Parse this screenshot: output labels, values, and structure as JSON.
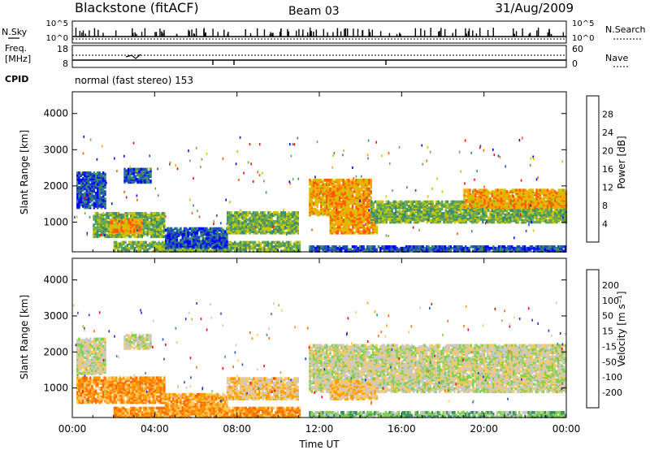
{
  "header": {
    "station": "Blackstone (fitACF)",
    "beam": "Beam 03",
    "date": "31/Aug/2009"
  },
  "params_panel": {
    "left_top_label": "N.Sky",
    "left_top_ticks": [
      "10^5",
      "10^0"
    ],
    "right_top_label": "N.Search",
    "right_top_ticks": [
      "10^5",
      "10^0"
    ],
    "left_bottom_label_1": "Freq.",
    "left_bottom_label_2": "[MHz]",
    "left_bottom_ticks": [
      "18",
      "8"
    ],
    "right_bottom_label": "Nave",
    "right_bottom_ticks": [
      "60",
      "0"
    ],
    "cpid_label": "CPID",
    "cpid_value": "normal (fast stereo) 153"
  },
  "colors": {
    "power_scale": [
      "#0000ff",
      "#1f4fb4",
      "#3a8c6e",
      "#6aa84f",
      "#c8c800",
      "#ffa500",
      "#ff5a00",
      "#ff0000"
    ],
    "velocity_scale": [
      "#ff0000",
      "#ff6a00",
      "#ff9a00",
      "#ffc864",
      "#c8c8c8",
      "#7fd14a",
      "#3a8c6e",
      "#1f4fb4",
      "#1a2fd0"
    ]
  },
  "chart_data": [
    {
      "type": "heatmap",
      "title": "",
      "quantity": "Power",
      "xlabel": "",
      "ylabel": "Slant Range [km]",
      "x_range_hours": [
        0,
        24
      ],
      "ylim": [
        180,
        4600
      ],
      "yticks": [
        "1000",
        "2000",
        "3000",
        "4000"
      ],
      "colorbar_label": "Power [dB]",
      "colorbar_ticks": [
        "4",
        "8",
        "12",
        "16",
        "20",
        "24",
        "28"
      ],
      "bands": [
        {
          "t0": 1.0,
          "t1": 4.5,
          "r0": 600,
          "r1": 1250,
          "level": "mid"
        },
        {
          "t0": 1.8,
          "t1": 3.4,
          "r0": 700,
          "r1": 1100,
          "level": "high"
        },
        {
          "t0": 0.2,
          "t1": 1.6,
          "r0": 1400,
          "r1": 2400,
          "level": "low"
        },
        {
          "t0": 2.5,
          "t1": 3.8,
          "r0": 2100,
          "r1": 2500,
          "level": "low"
        },
        {
          "t0": 2.0,
          "t1": 11.0,
          "r0": 200,
          "r1": 450,
          "level": "mid"
        },
        {
          "t0": 4.5,
          "t1": 7.5,
          "r0": 300,
          "r1": 850,
          "level": "low"
        },
        {
          "t0": 7.5,
          "t1": 11.0,
          "r0": 700,
          "r1": 1300,
          "level": "mid"
        },
        {
          "t0": 11.5,
          "t1": 14.5,
          "r0": 1200,
          "r1": 2200,
          "level": "high"
        },
        {
          "t0": 12.5,
          "t1": 14.8,
          "r0": 700,
          "r1": 1300,
          "level": "high"
        },
        {
          "t0": 14.5,
          "t1": 24.0,
          "r0": 1000,
          "r1": 1600,
          "level": "mid"
        },
        {
          "t0": 19.0,
          "t1": 24.0,
          "r0": 1400,
          "r1": 1900,
          "level": "high"
        },
        {
          "t0": 11.5,
          "t1": 24.0,
          "r0": 200,
          "r1": 350,
          "level": "low"
        }
      ]
    },
    {
      "type": "heatmap",
      "title": "",
      "quantity": "Velocity",
      "xlabel": "Time UT",
      "ylabel": "Slant Range [km]",
      "x_range_hours": [
        0,
        24
      ],
      "ylim": [
        180,
        4600
      ],
      "xticks": [
        "00:00",
        "04:00",
        "08:00",
        "12:00",
        "16:00",
        "20:00",
        "00:00"
      ],
      "yticks": [
        "1000",
        "2000",
        "3000",
        "4000"
      ],
      "colorbar_label": "Velocity [m s⁻¹]",
      "colorbar_ticks": [
        "200",
        "100",
        "50",
        "15",
        "-15",
        "-50",
        "-100",
        "-200"
      ],
      "bands": [
        {
          "t0": 0.2,
          "t1": 4.5,
          "r0": 600,
          "r1": 1300,
          "level": "neg-mid"
        },
        {
          "t0": 0.2,
          "t1": 1.6,
          "r0": 1400,
          "r1": 2400,
          "level": "zero"
        },
        {
          "t0": 2.5,
          "t1": 3.8,
          "r0": 2100,
          "r1": 2500,
          "level": "zero"
        },
        {
          "t0": 2.0,
          "t1": 11.0,
          "r0": 200,
          "r1": 450,
          "level": "neg-mid"
        },
        {
          "t0": 4.5,
          "t1": 7.5,
          "r0": 300,
          "r1": 850,
          "level": "neg-mid"
        },
        {
          "t0": 7.5,
          "t1": 11.0,
          "r0": 700,
          "r1": 1300,
          "level": "neg-low"
        },
        {
          "t0": 11.5,
          "t1": 24.0,
          "r0": 900,
          "r1": 2200,
          "level": "zero"
        },
        {
          "t0": 12.5,
          "t1": 14.8,
          "r0": 700,
          "r1": 1200,
          "level": "neg-low"
        },
        {
          "t0": 11.5,
          "t1": 24.0,
          "r0": 200,
          "r1": 350,
          "level": "pos-low"
        }
      ]
    }
  ]
}
